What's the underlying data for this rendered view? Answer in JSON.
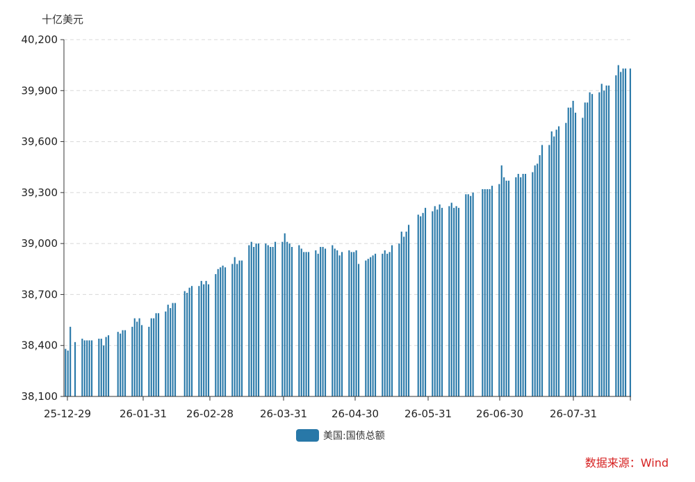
{
  "chart_data": {
    "type": "bar",
    "unit_label": "十亿美元",
    "ylim": [
      38100,
      40200
    ],
    "y_ticks": [
      "38,100",
      "38,400",
      "38,700",
      "39,000",
      "39,300",
      "39,600",
      "39,900",
      "40,200"
    ],
    "x_tick_labels": [
      "25-12-29",
      "26-01-31",
      "26-02-28",
      "26-03-31",
      "26-04-30",
      "26-05-31",
      "26-06-30",
      "26-07-31"
    ],
    "grid": true,
    "legend_position": "bottom-center",
    "series": [
      {
        "name": "美国:国债总额",
        "color": "#2878a8",
        "values": [
          38380,
          38370,
          38510,
          null,
          38420,
          null,
          null,
          38440,
          38430,
          38430,
          38430,
          38430,
          null,
          null,
          38440,
          38440,
          38400,
          38450,
          38460,
          null,
          null,
          null,
          38480,
          38470,
          38490,
          38490,
          null,
          null,
          38510,
          38560,
          38540,
          38560,
          38520,
          null,
          null,
          38510,
          38560,
          38560,
          38590,
          38590,
          null,
          null,
          38600,
          38640,
          38620,
          38650,
          38650,
          null,
          null,
          null,
          38720,
          38710,
          38740,
          38750,
          null,
          null,
          38750,
          38780,
          38760,
          38780,
          38760,
          null,
          null,
          38820,
          38850,
          38860,
          38870,
          38860,
          null,
          null,
          38880,
          38920,
          38880,
          38900,
          38900,
          null,
          null,
          38990,
          39010,
          38980,
          39000,
          39000,
          null,
          null,
          39000,
          38990,
          38980,
          38980,
          39010,
          null,
          null,
          39010,
          39060,
          39010,
          39000,
          38980,
          null,
          null,
          38990,
          38970,
          38950,
          38950,
          38950,
          null,
          null,
          38960,
          38940,
          38980,
          38980,
          38970,
          null,
          null,
          38990,
          38970,
          38960,
          38930,
          38950,
          null,
          null,
          38960,
          38950,
          38950,
          38960,
          38880,
          null,
          null,
          38900,
          38910,
          38920,
          38930,
          38940,
          null,
          null,
          38940,
          38960,
          38940,
          38950,
          38990,
          null,
          null,
          39000,
          39070,
          39040,
          39070,
          39110,
          null,
          null,
          null,
          39170,
          39160,
          39180,
          39210,
          null,
          null,
          39190,
          39220,
          39200,
          39230,
          39210,
          null,
          null,
          39220,
          39240,
          39210,
          39220,
          39210,
          null,
          null,
          39290,
          39290,
          39280,
          39300,
          null,
          null,
          null,
          39320,
          39320,
          39320,
          39320,
          39340,
          null,
          null,
          39350,
          39460,
          39390,
          39370,
          39370,
          null,
          null,
          39390,
          39410,
          39390,
          39410,
          39410,
          null,
          null,
          39420,
          39460,
          39470,
          39520,
          39580,
          null,
          null,
          39580,
          39660,
          39630,
          39670,
          39690,
          null,
          null,
          39710,
          39800,
          39800,
          39840,
          39770,
          null,
          null,
          39740,
          39830,
          39830,
          39890,
          39880,
          null,
          null,
          39890,
          39940,
          39900,
          39930,
          39930,
          null,
          null,
          39990,
          40050,
          40010,
          40030,
          40030,
          null,
          40030
        ]
      }
    ]
  },
  "source_label": "数据来源：Wind"
}
